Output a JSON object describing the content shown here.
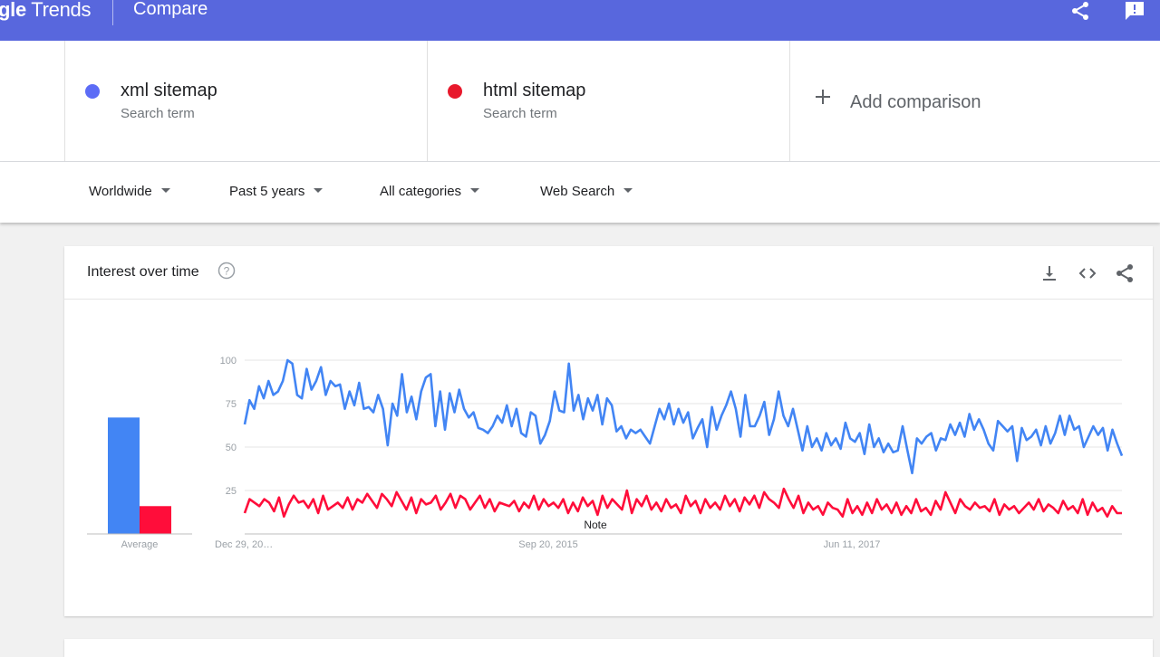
{
  "header": {
    "brand_partial": "gle",
    "brand_rest": " Trends",
    "title": "Compare",
    "share_icon": "share-icon",
    "feedback_icon": "feedback-icon"
  },
  "terms": [
    {
      "name": "xml sitemap",
      "subtitle": "Search term",
      "color": "#5c6cf6"
    },
    {
      "name": "html sitemap",
      "subtitle": "Search term",
      "color": "#e8192c"
    }
  ],
  "add_comparison": {
    "label": "Add comparison"
  },
  "filters": {
    "region": "Worldwide",
    "time": "Past 5 years",
    "category": "All categories",
    "search_type": "Web Search"
  },
  "card": {
    "title": "Interest over time",
    "help_icon": "help-circle-icon",
    "actions": [
      "download-icon",
      "embed-code-icon",
      "share-icon"
    ]
  },
  "chart_data": {
    "type": "line",
    "y_ticks": [
      "100",
      "75",
      "50",
      "25"
    ],
    "ylim": [
      0,
      100
    ],
    "x_tick_labels": [
      "Dec 29, 20…",
      "Sep 20, 2015",
      "Jun 11, 2017"
    ],
    "note_label": "Note",
    "average_label": "Average",
    "averages": [
      {
        "term": "xml sitemap",
        "value": 67,
        "color": "#4285f4"
      },
      {
        "term": "html sitemap",
        "value": 16,
        "color": "#ff0d3a"
      }
    ],
    "series": [
      {
        "name": "xml sitemap",
        "color": "#4285f4",
        "values": [
          63,
          77,
          72,
          85,
          78,
          88,
          80,
          82,
          88,
          100,
          98,
          80,
          78,
          95,
          83,
          88,
          96,
          80,
          88,
          85,
          86,
          72,
          82,
          74,
          87,
          72,
          73,
          70,
          80,
          72,
          51,
          75,
          68,
          92,
          70,
          79,
          66,
          82,
          90,
          92,
          62,
          82,
          60,
          81,
          70,
          83,
          72,
          67,
          70,
          61,
          60,
          58,
          62,
          68,
          64,
          74,
          62,
          72,
          58,
          56,
          70,
          68,
          52,
          57,
          65,
          82,
          71,
          70,
          98,
          71,
          80,
          66,
          78,
          71,
          80,
          63,
          78,
          74,
          59,
          62,
          55,
          60,
          58,
          60,
          56,
          52,
          62,
          72,
          66,
          75,
          63,
          72,
          64,
          70,
          55,
          61,
          66,
          50,
          73,
          60,
          68,
          74,
          82,
          72,
          56,
          80,
          62,
          62,
          68,
          76,
          57,
          66,
          82,
          68,
          62,
          72,
          60,
          48,
          62,
          50,
          55,
          48,
          58,
          51,
          55,
          49,
          64,
          55,
          53,
          58,
          46,
          63,
          50,
          55,
          47,
          52,
          47,
          48,
          62,
          48,
          35,
          55,
          52,
          56,
          58,
          48,
          55,
          54,
          63,
          57,
          64,
          56,
          69,
          60,
          66,
          60,
          52,
          48,
          65,
          62,
          59,
          62,
          42,
          61,
          54,
          56,
          60,
          51,
          62,
          52,
          58,
          68,
          57,
          68,
          60,
          62,
          50,
          56,
          62,
          57,
          61,
          48,
          60,
          52,
          45
        ]
      },
      {
        "name": "html sitemap",
        "color": "#ff0d3a",
        "values": [
          12,
          20,
          18,
          16,
          20,
          18,
          13,
          21,
          10,
          17,
          22,
          18,
          19,
          15,
          20,
          12,
          22,
          14,
          16,
          18,
          15,
          21,
          14,
          20,
          18,
          23,
          19,
          15,
          23,
          20,
          16,
          24,
          19,
          14,
          21,
          12,
          20,
          17,
          18,
          22,
          14,
          18,
          23,
          15,
          22,
          20,
          14,
          18,
          22,
          15,
          20,
          13,
          18,
          17,
          16,
          19,
          13,
          18,
          15,
          22,
          14,
          20,
          16,
          18,
          15,
          20,
          12,
          18,
          13,
          21,
          16,
          19,
          11,
          22,
          15,
          20,
          17,
          14,
          25,
          12,
          20,
          16,
          22,
          14,
          18,
          13,
          20,
          15,
          17,
          12,
          22,
          16,
          19,
          12,
          20,
          15,
          18,
          14,
          22,
          16,
          20,
          13,
          21,
          17,
          22,
          15,
          24,
          20,
          18,
          15,
          26,
          20,
          15,
          22,
          12,
          18,
          14,
          16,
          11,
          18,
          15,
          14,
          10,
          20,
          12,
          16,
          11,
          18,
          12,
          20,
          14,
          17,
          12,
          18,
          11,
          16,
          12,
          20,
          13,
          15,
          11,
          19,
          14,
          24,
          18,
          12,
          20,
          16,
          14,
          18,
          15,
          16,
          13,
          20,
          11,
          17,
          14,
          16,
          12,
          15,
          18,
          14,
          20,
          13,
          17,
          15,
          12,
          19,
          14,
          16,
          12,
          20,
          11,
          18,
          13,
          15,
          10,
          16,
          12,
          12
        ]
      }
    ]
  }
}
